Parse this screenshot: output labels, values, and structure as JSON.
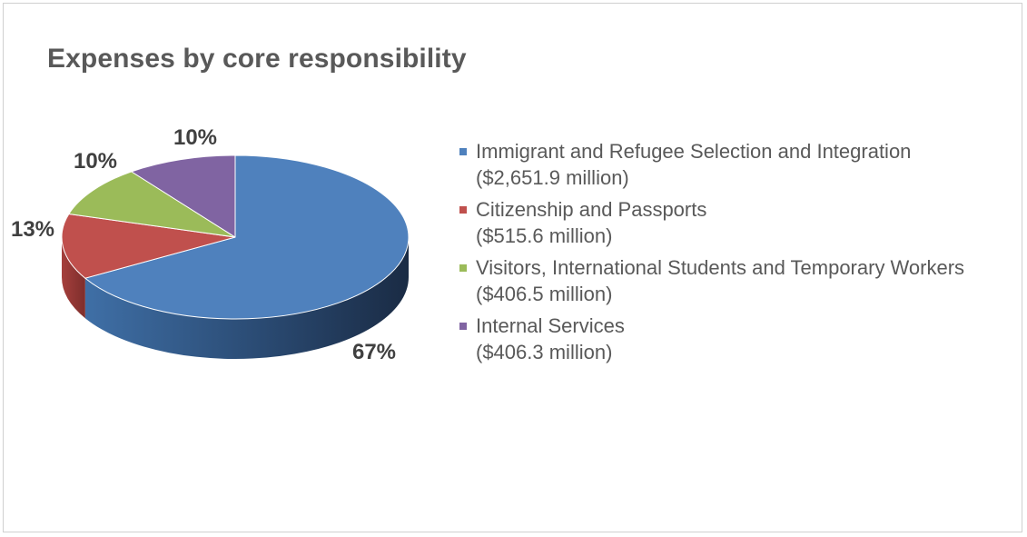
{
  "chart_data": {
    "type": "pie",
    "title": "Expenses by core responsibility",
    "three_d": true,
    "legend_position": "right",
    "slices": [
      {
        "label": "Immigrant and Refugee Selection and Integration",
        "amount_label": "($2,651.9 million)",
        "value": 2651.9,
        "percent_label": "67%",
        "color": "#4f81bd"
      },
      {
        "label": "Citizenship and Passports",
        "amount_label": "($515.6 million)",
        "value": 515.6,
        "percent_label": "13%",
        "color": "#c0504d"
      },
      {
        "label": "Visitors, International Students and Temporary Workers",
        "amount_label": "($406.5 million)",
        "value": 406.5,
        "percent_label": "10%",
        "color": "#9bbb59"
      },
      {
        "label": "Internal Services",
        "amount_label": "($406.3 million)",
        "value": 406.3,
        "percent_label": "10%",
        "color": "#8064a2"
      }
    ]
  }
}
